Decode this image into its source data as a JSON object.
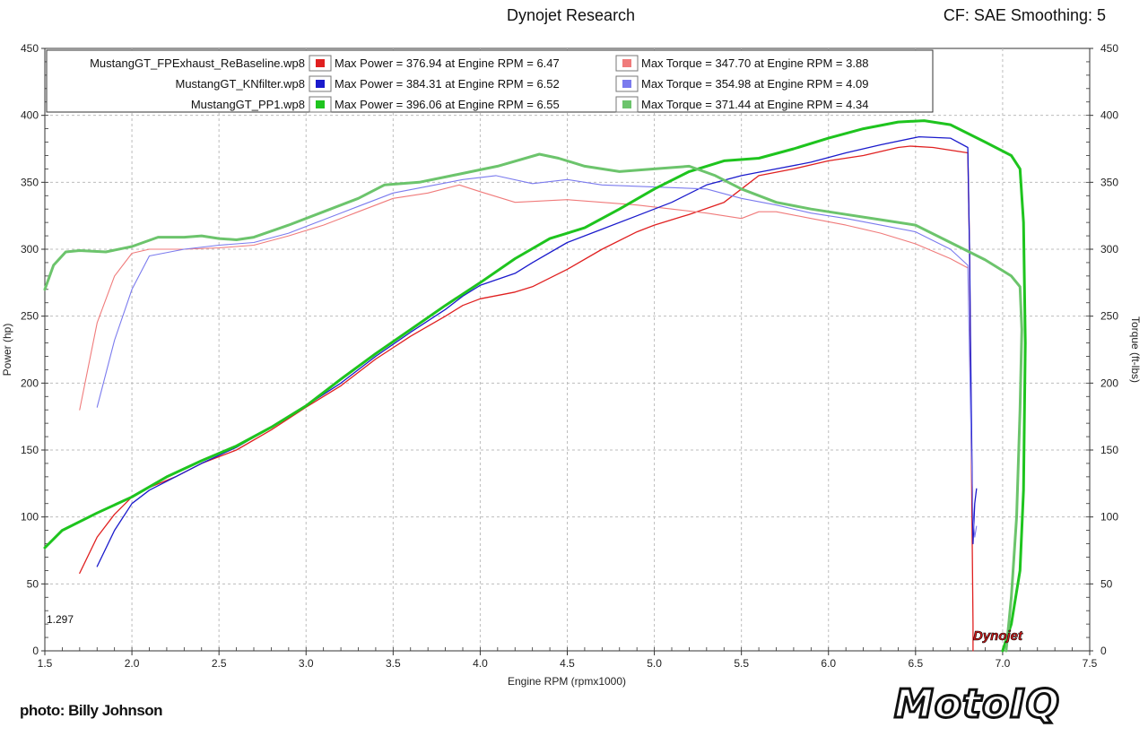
{
  "header": {
    "title": "Dynojet Research",
    "right_info": "CF: SAE Smoothing: 5"
  },
  "run_number": "1.297",
  "photo_credit": "photo: Billy Johnson",
  "brand_logo": "MotoIQ",
  "dyno_logo": "Dynojet",
  "chart_data": {
    "type": "line",
    "xlabel": "Engine RPM (rpmx1000)",
    "ylabel": "Power (hp)",
    "y2label": "Torque (ft-lbs)",
    "xlim": [
      1.5,
      7.5
    ],
    "ylim": [
      0,
      450
    ],
    "y2lim": [
      0,
      450
    ],
    "xticks": [
      "1.5",
      "2.0",
      "2.5",
      "3.0",
      "3.5",
      "4.0",
      "4.5",
      "5.0",
      "5.5",
      "6.0",
      "6.5",
      "7.0",
      "7.5"
    ],
    "yticks": [
      "0",
      "50",
      "100",
      "150",
      "200",
      "250",
      "300",
      "350",
      "400",
      "450"
    ],
    "grid": true,
    "legend_position": "top-left",
    "legend": [
      {
        "file": "MustangGT_FPExhaust_ReBaseline.wp8",
        "power_text": "Max Power = 376.94 at Engine RPM = 6.47",
        "torque_text": "Max Torque = 347.70 at Engine RPM = 3.88",
        "power_color": "#e02020",
        "torque_color": "#f07b7b"
      },
      {
        "file": "MustangGT_KNfilter.wp8",
        "power_text": "Max Power = 384.31 at Engine RPM = 6.52",
        "torque_text": "Max Torque = 354.98 at Engine RPM = 4.09",
        "power_color": "#1a1acc",
        "torque_color": "#7b7bee"
      },
      {
        "file": "MustangGT_PP1.wp8",
        "power_text": "Max Power = 396.06 at Engine RPM = 6.55",
        "torque_text": "Max Torque = 371.44 at Engine RPM = 4.34",
        "power_color": "#1ec41e",
        "torque_color": "#6cc46c"
      }
    ],
    "series": [
      {
        "id": "baseline-power",
        "axis": "left",
        "color": "#e02020",
        "width": 1.3,
        "points": [
          [
            1.7,
            58
          ],
          [
            1.8,
            85
          ],
          [
            1.9,
            102
          ],
          [
            2.0,
            115
          ],
          [
            2.1,
            122
          ],
          [
            2.25,
            130
          ],
          [
            2.4,
            140
          ],
          [
            2.6,
            150
          ],
          [
            2.8,
            165
          ],
          [
            3.0,
            182
          ],
          [
            3.2,
            198
          ],
          [
            3.4,
            218
          ],
          [
            3.6,
            235
          ],
          [
            3.8,
            250
          ],
          [
            3.9,
            258
          ],
          [
            4.0,
            263
          ],
          [
            4.2,
            268
          ],
          [
            4.3,
            272
          ],
          [
            4.5,
            285
          ],
          [
            4.7,
            300
          ],
          [
            4.9,
            313
          ],
          [
            5.0,
            318
          ],
          [
            5.2,
            326
          ],
          [
            5.4,
            335
          ],
          [
            5.5,
            345
          ],
          [
            5.6,
            355
          ],
          [
            5.8,
            360
          ],
          [
            6.0,
            366
          ],
          [
            6.2,
            370
          ],
          [
            6.4,
            376
          ],
          [
            6.47,
            377
          ],
          [
            6.6,
            376
          ],
          [
            6.7,
            374
          ],
          [
            6.8,
            372
          ],
          [
            6.81,
            300
          ],
          [
            6.82,
            150
          ],
          [
            6.83,
            20
          ],
          [
            6.83,
            0
          ]
        ]
      },
      {
        "id": "baseline-torque",
        "axis": "right",
        "color": "#f07b7b",
        "width": 1.1,
        "points": [
          [
            1.7,
            180
          ],
          [
            1.8,
            245
          ],
          [
            1.9,
            280
          ],
          [
            2.0,
            297
          ],
          [
            2.1,
            300
          ],
          [
            2.3,
            300
          ],
          [
            2.5,
            301
          ],
          [
            2.7,
            303
          ],
          [
            2.9,
            310
          ],
          [
            3.1,
            318
          ],
          [
            3.3,
            328
          ],
          [
            3.5,
            338
          ],
          [
            3.7,
            342
          ],
          [
            3.88,
            348
          ],
          [
            4.0,
            343
          ],
          [
            4.2,
            335
          ],
          [
            4.5,
            337
          ],
          [
            4.7,
            335
          ],
          [
            4.9,
            333
          ],
          [
            5.1,
            330
          ],
          [
            5.3,
            327
          ],
          [
            5.5,
            323
          ],
          [
            5.6,
            328
          ],
          [
            5.7,
            328
          ],
          [
            5.9,
            323
          ],
          [
            6.1,
            318
          ],
          [
            6.3,
            312
          ],
          [
            6.5,
            304
          ],
          [
            6.7,
            293
          ],
          [
            6.8,
            286
          ]
        ]
      },
      {
        "id": "knfilter-power",
        "axis": "left",
        "color": "#1a1acc",
        "width": 1.3,
        "points": [
          [
            1.8,
            63
          ],
          [
            1.9,
            90
          ],
          [
            2.0,
            110
          ],
          [
            2.1,
            120
          ],
          [
            2.25,
            130
          ],
          [
            2.4,
            140
          ],
          [
            2.6,
            152
          ],
          [
            2.8,
            167
          ],
          [
            3.0,
            183
          ],
          [
            3.2,
            200
          ],
          [
            3.4,
            220
          ],
          [
            3.6,
            238
          ],
          [
            3.8,
            255
          ],
          [
            3.9,
            265
          ],
          [
            4.0,
            273
          ],
          [
            4.2,
            282
          ],
          [
            4.3,
            290
          ],
          [
            4.5,
            305
          ],
          [
            4.7,
            315
          ],
          [
            4.9,
            325
          ],
          [
            5.1,
            335
          ],
          [
            5.3,
            348
          ],
          [
            5.5,
            355
          ],
          [
            5.7,
            360
          ],
          [
            5.9,
            365
          ],
          [
            6.1,
            372
          ],
          [
            6.3,
            378
          ],
          [
            6.52,
            384
          ],
          [
            6.7,
            383
          ],
          [
            6.8,
            376
          ],
          [
            6.81,
            300
          ],
          [
            6.82,
            180
          ],
          [
            6.83,
            80
          ],
          [
            6.84,
            110
          ],
          [
            6.85,
            121
          ]
        ]
      },
      {
        "id": "knfilter-torque",
        "axis": "right",
        "color": "#7b7bee",
        "width": 1.1,
        "points": [
          [
            1.8,
            182
          ],
          [
            1.9,
            232
          ],
          [
            2.0,
            270
          ],
          [
            2.1,
            295
          ],
          [
            2.3,
            300
          ],
          [
            2.5,
            303
          ],
          [
            2.7,
            305
          ],
          [
            2.9,
            312
          ],
          [
            3.1,
            322
          ],
          [
            3.3,
            332
          ],
          [
            3.5,
            342
          ],
          [
            3.7,
            347
          ],
          [
            3.9,
            352
          ],
          [
            4.09,
            355
          ],
          [
            4.3,
            349
          ],
          [
            4.5,
            352
          ],
          [
            4.7,
            348
          ],
          [
            4.9,
            347
          ],
          [
            5.1,
            346
          ],
          [
            5.3,
            345
          ],
          [
            5.5,
            338
          ],
          [
            5.7,
            333
          ],
          [
            5.9,
            327
          ],
          [
            6.1,
            323
          ],
          [
            6.3,
            318
          ],
          [
            6.5,
            313
          ],
          [
            6.7,
            300
          ],
          [
            6.8,
            288
          ],
          [
            6.81,
            220
          ],
          [
            6.82,
            150
          ],
          [
            6.83,
            100
          ],
          [
            6.84,
            85
          ],
          [
            6.85,
            93
          ]
        ]
      },
      {
        "id": "pp1-power",
        "axis": "left",
        "color": "#1ec41e",
        "width": 3,
        "points": [
          [
            1.5,
            77
          ],
          [
            1.6,
            90
          ],
          [
            1.8,
            103
          ],
          [
            2.0,
            115
          ],
          [
            2.2,
            130
          ],
          [
            2.4,
            142
          ],
          [
            2.6,
            153
          ],
          [
            2.8,
            167
          ],
          [
            3.0,
            183
          ],
          [
            3.2,
            203
          ],
          [
            3.4,
            222
          ],
          [
            3.6,
            240
          ],
          [
            3.8,
            258
          ],
          [
            4.0,
            275
          ],
          [
            4.2,
            293
          ],
          [
            4.4,
            308
          ],
          [
            4.6,
            316
          ],
          [
            4.8,
            330
          ],
          [
            5.0,
            345
          ],
          [
            5.2,
            358
          ],
          [
            5.4,
            366
          ],
          [
            5.6,
            368
          ],
          [
            5.8,
            375
          ],
          [
            6.0,
            383
          ],
          [
            6.2,
            390
          ],
          [
            6.4,
            395
          ],
          [
            6.55,
            396
          ],
          [
            6.7,
            393
          ],
          [
            6.9,
            380
          ],
          [
            7.05,
            370
          ],
          [
            7.1,
            360
          ],
          [
            7.12,
            320
          ],
          [
            7.13,
            230
          ],
          [
            7.12,
            120
          ],
          [
            7.1,
            60
          ],
          [
            7.05,
            20
          ],
          [
            7.0,
            0
          ]
        ]
      },
      {
        "id": "pp1-torque",
        "axis": "right",
        "color": "#6cc46c",
        "width": 3,
        "points": [
          [
            1.5,
            270
          ],
          [
            1.55,
            288
          ],
          [
            1.62,
            298
          ],
          [
            1.7,
            299
          ],
          [
            1.85,
            298
          ],
          [
            2.0,
            302
          ],
          [
            2.15,
            309
          ],
          [
            2.3,
            309
          ],
          [
            2.4,
            310
          ],
          [
            2.5,
            308
          ],
          [
            2.6,
            307
          ],
          [
            2.7,
            309
          ],
          [
            2.9,
            318
          ],
          [
            3.1,
            328
          ],
          [
            3.3,
            338
          ],
          [
            3.45,
            348
          ],
          [
            3.65,
            350
          ],
          [
            3.8,
            354
          ],
          [
            3.95,
            358
          ],
          [
            4.1,
            362
          ],
          [
            4.34,
            371
          ],
          [
            4.45,
            368
          ],
          [
            4.6,
            362
          ],
          [
            4.8,
            358
          ],
          [
            5.0,
            360
          ],
          [
            5.2,
            362
          ],
          [
            5.35,
            355
          ],
          [
            5.5,
            345
          ],
          [
            5.7,
            335
          ],
          [
            5.9,
            330
          ],
          [
            6.1,
            326
          ],
          [
            6.3,
            322
          ],
          [
            6.5,
            318
          ],
          [
            6.7,
            305
          ],
          [
            6.9,
            292
          ],
          [
            7.05,
            280
          ],
          [
            7.1,
            272
          ],
          [
            7.11,
            240
          ],
          [
            7.1,
            180
          ],
          [
            7.08,
            100
          ],
          [
            7.05,
            40
          ],
          [
            7.02,
            0
          ]
        ]
      }
    ]
  }
}
